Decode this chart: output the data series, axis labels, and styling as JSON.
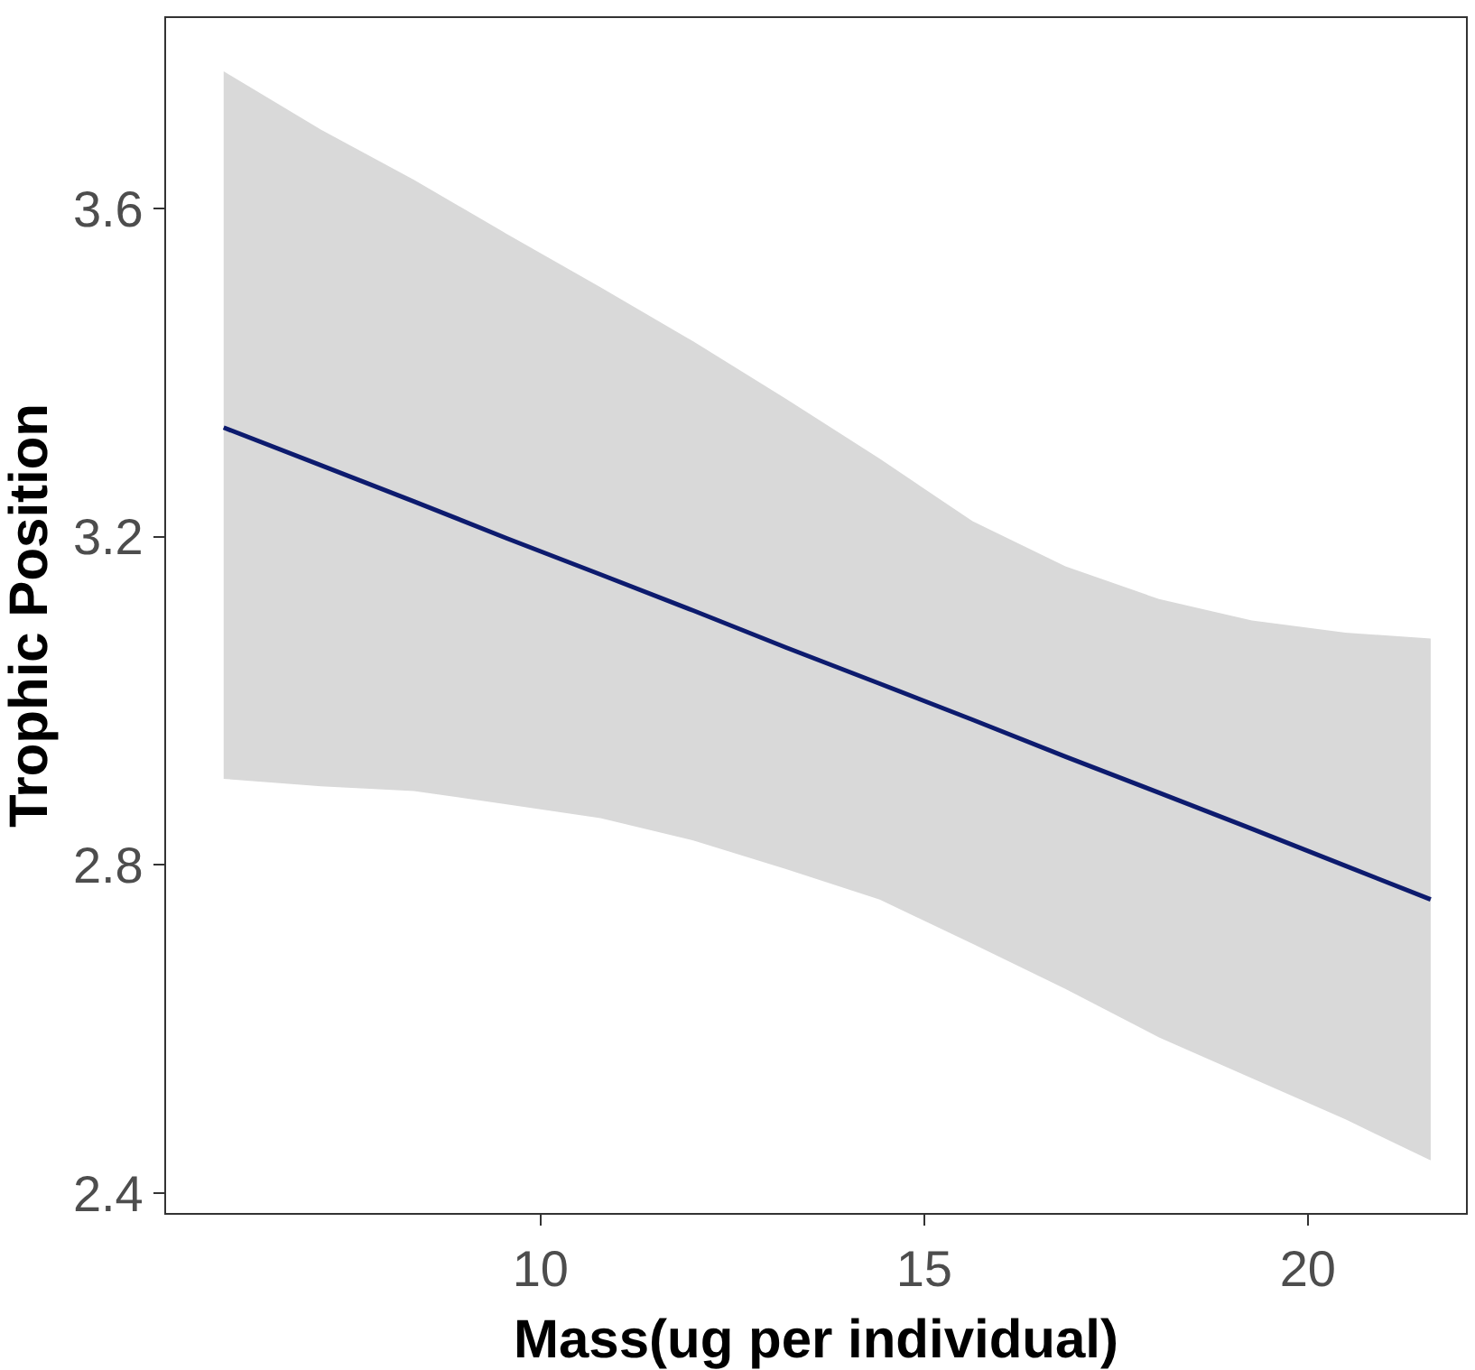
{
  "chart_data": {
    "type": "line",
    "xlabel": "Mass(ug per individual)",
    "ylabel": "Trophic Position",
    "xlim": [
      5.12,
      22.06
    ],
    "xticks": [
      10,
      15,
      20
    ],
    "ylim": [
      2.376,
      3.832
    ],
    "yticks": [
      2.4,
      2.8,
      3.2,
      3.6
    ],
    "grid": false,
    "marker": "none",
    "line_style": "solid",
    "series": [
      {
        "color": "#0d1b6e",
        "x": [
          5.87,
          7.14,
          8.35,
          9.56,
          10.78,
          11.99,
          13.2,
          14.42,
          15.63,
          16.84,
          18.06,
          19.27,
          20.49,
          21.6
        ],
        "values": [
          3.333,
          3.287,
          3.243,
          3.198,
          3.154,
          3.11,
          3.065,
          3.021,
          2.977,
          2.932,
          2.888,
          2.844,
          2.799,
          2.758
        ],
        "upper": [
          3.767,
          3.696,
          3.635,
          3.569,
          3.504,
          3.438,
          3.368,
          3.295,
          3.219,
          3.164,
          3.124,
          3.098,
          3.083,
          3.076
        ],
        "lower": [
          2.905,
          2.896,
          2.89,
          2.874,
          2.857,
          2.83,
          2.795,
          2.758,
          2.704,
          2.649,
          2.59,
          2.54,
          2.49,
          2.44
        ]
      }
    ]
  }
}
